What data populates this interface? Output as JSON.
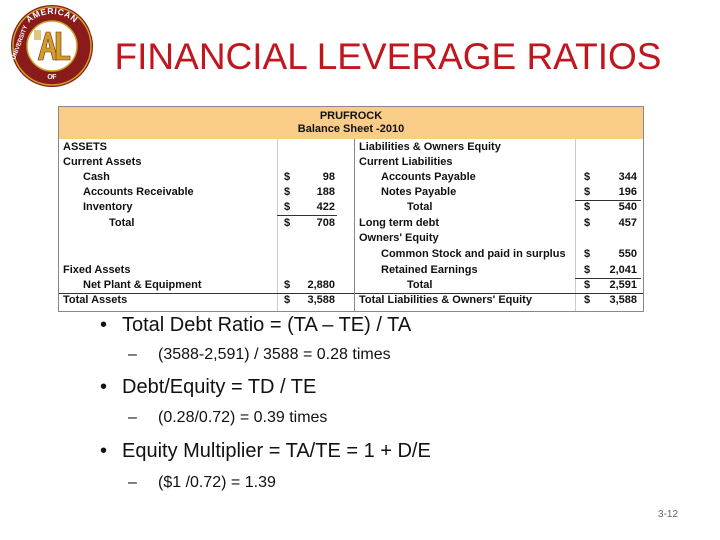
{
  "logo": {
    "ring_top_text": "AMERICAN",
    "ring_left_text": "UNIVERSITY",
    "ring_right_text": "LEADERSHIP",
    "ring_bottom_text": "OF",
    "colors": {
      "ring": "#8b1a1a",
      "gold": "#c9a227",
      "inner": "#ffffff"
    }
  },
  "title": "FINANCIAL LEVERAGE RATIOS",
  "balance_sheet": {
    "company": "PRUFROCK",
    "subtitle": "Balance Sheet -2010",
    "left": {
      "assets": "ASSETS",
      "current_assets": "Current Assets",
      "cash": {
        "label": "Cash",
        "cur": "$",
        "value": "98"
      },
      "receivable": {
        "label": "Accounts Receivable",
        "cur": "$",
        "value": "188"
      },
      "inventory": {
        "label": "Inventory",
        "cur": "$",
        "value": "422"
      },
      "ca_total": {
        "label": "Total",
        "cur": "$",
        "value": "708"
      },
      "fixed_assets": "Fixed Assets",
      "net_plant": {
        "label": "Net Plant & Equipment",
        "cur": "$",
        "value": "2,880"
      },
      "total_assets": {
        "label": "Total Assets",
        "cur": "$",
        "value": "3,588"
      }
    },
    "right": {
      "header": "Liabilities & Owners Equity",
      "current_liabilities": "Current Liabilities",
      "payable": {
        "label": "Accounts Payable",
        "cur": "$",
        "value": "344"
      },
      "notes": {
        "label": "Notes Payable",
        "cur": "$",
        "value": "196"
      },
      "cl_total": {
        "label": "Total",
        "cur": "$",
        "value": "540"
      },
      "ltd": {
        "label": "Long term debt",
        "cur": "$",
        "value": "457"
      },
      "owners_equity": "Owners' Equity",
      "common": {
        "label": "Common Stock and paid in surplus",
        "cur": "$",
        "value": "550"
      },
      "retained": {
        "label": "Retained Earnings",
        "cur": "$",
        "value": "2,041"
      },
      "oe_total": {
        "label": "Total",
        "cur": "$",
        "value": "2,591"
      },
      "total_le": {
        "label": "Total Liabilities & Owners' Equity",
        "cur": "$",
        "value": "3,588"
      }
    },
    "colors": {
      "header_fill": "#f9cc88"
    }
  },
  "bullets": [
    {
      "main": "Total Debt Ratio = (TA – TE) / TA",
      "sub": "(3588-2,591) / 3588 = 0.28 times"
    },
    {
      "main": "Debt/Equity = TD / TE",
      "sub": "(0.28/0.72) = 0.39 times"
    },
    {
      "main": "Equity Multiplier = TA/TE = 1 + D/E",
      "sub": "($1 /0.72) = 1.39"
    }
  ],
  "bullet_glyph": "•",
  "dash_glyph": "–",
  "page_number": "3-12"
}
